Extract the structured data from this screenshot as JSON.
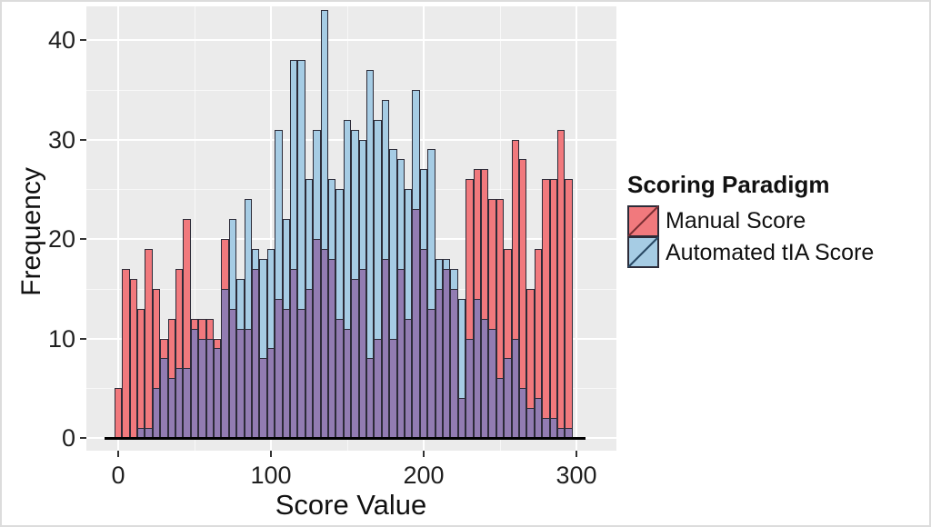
{
  "figure": {
    "y_axis": {
      "label": "Frequency",
      "ticks": [
        0,
        10,
        20,
        30,
        40
      ]
    },
    "x_axis": {
      "label": "Score Value",
      "ticks": [
        0,
        100,
        200,
        300
      ]
    },
    "legend": {
      "title": "Scoring Paradigm",
      "items": [
        {
          "label": "Manual Score",
          "color": "#F1797D",
          "line_color": "#7a2e33"
        },
        {
          "label": "Automated tIA Score",
          "color": "#A6CCE4",
          "line_color": "#274763"
        }
      ]
    }
  },
  "colors": {
    "panel_background": "#EBEBEB",
    "grid_major": "#FFFFFF",
    "grid_minor": "#FFFFFF99",
    "bar_outline": "#2c2b38",
    "manual_fill": "#F1797D",
    "automated_fill": "#A6CCE4",
    "overlap_fill": "#927CB2",
    "axis_line": "#000000",
    "text": "#1f1f1f"
  },
  "chart_data": {
    "type": "bar",
    "subtype": "overlaid-histogram",
    "title": "",
    "xlabel": "Score Value",
    "ylabel": "Frequency",
    "xlim": [
      -5,
      325
    ],
    "ylim": [
      0,
      43
    ],
    "grid": true,
    "legend_position": "right",
    "bin_width": 5,
    "bin_centers": [
      0,
      5,
      10,
      15,
      20,
      25,
      30,
      35,
      40,
      45,
      50,
      55,
      60,
      65,
      70,
      75,
      80,
      85,
      90,
      95,
      100,
      105,
      110,
      115,
      120,
      125,
      130,
      135,
      140,
      145,
      150,
      155,
      160,
      165,
      170,
      175,
      180,
      185,
      190,
      195,
      200,
      205,
      210,
      215,
      220,
      225,
      230,
      235,
      240,
      245,
      250,
      255,
      260,
      265,
      270,
      275,
      280,
      285,
      290,
      295
    ],
    "series": [
      {
        "name": "Manual Score",
        "values": [
          5,
          17,
          16,
          13,
          19,
          15,
          10,
          12,
          17,
          22,
          12,
          12,
          12,
          10,
          20,
          13,
          11,
          11,
          17,
          8,
          9,
          14,
          13,
          17,
          13,
          15,
          20,
          19,
          18,
          12,
          11,
          16,
          17,
          8,
          10,
          18,
          10,
          17,
          12,
          23,
          19,
          13,
          15,
          17,
          15,
          4,
          26,
          27,
          27,
          24,
          24,
          19,
          30,
          28,
          15,
          19,
          26,
          26,
          31,
          26
        ]
      },
      {
        "name": "Automated tIA Score",
        "values": [
          0,
          0,
          0,
          1,
          1,
          5,
          8,
          6,
          7,
          7,
          11,
          10,
          10,
          9,
          15,
          22,
          16,
          24,
          19,
          18,
          19,
          31,
          22,
          38,
          38,
          26,
          31,
          43,
          26,
          25,
          32,
          31,
          30,
          37,
          32,
          34,
          29,
          28,
          25,
          35,
          27,
          29,
          18,
          18,
          17,
          14,
          10,
          14,
          12,
          11,
          6,
          8,
          10,
          5,
          3,
          4,
          2,
          2,
          1,
          1
        ]
      }
    ],
    "y_gridlines_major": [
      0,
      10,
      20,
      30,
      40
    ],
    "y_gridlines_minor": [
      5,
      15,
      25,
      35
    ],
    "x_gridlines_major": [
      0,
      100,
      200,
      300
    ],
    "x_gridlines_minor": [
      50,
      150,
      250
    ]
  }
}
